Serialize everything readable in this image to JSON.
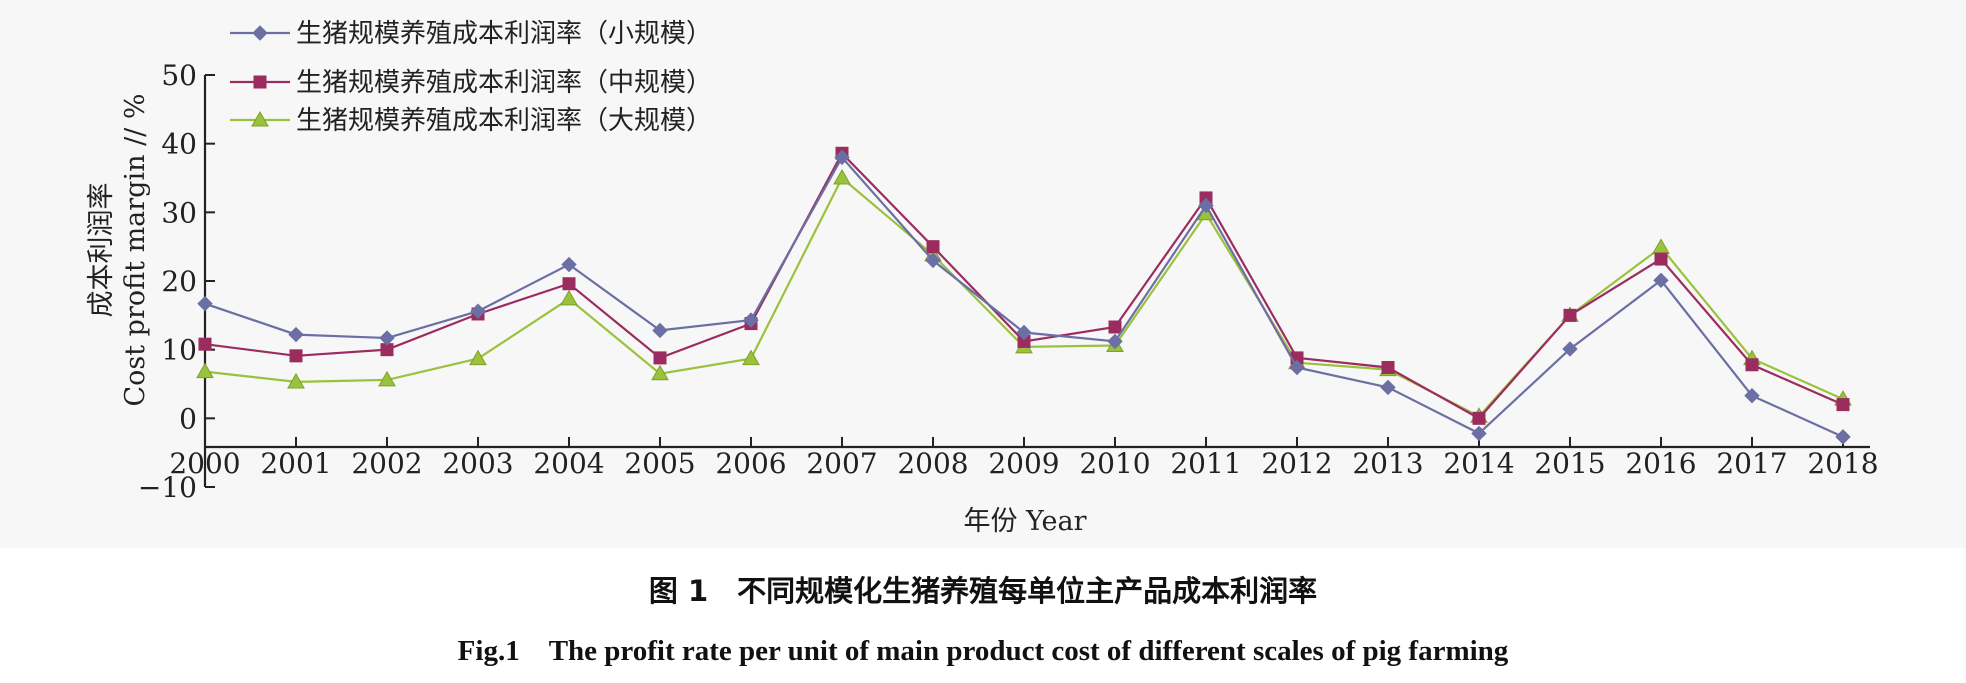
{
  "chart_data": {
    "type": "line",
    "categories": [
      "2000",
      "2001",
      "2002",
      "2003",
      "2004",
      "2005",
      "2006",
      "2007",
      "2008",
      "2009",
      "2010",
      "2011",
      "2012",
      "2013",
      "2014",
      "2015",
      "2016",
      "2017",
      "2018"
    ],
    "series": [
      {
        "name": "生猪规模养殖成本利润率（小规模）",
        "color": "#6b6fa3",
        "marker": "diamond",
        "values": [
          16.7,
          12.2,
          11.7,
          15.6,
          22.4,
          12.8,
          14.3,
          38.0,
          23.0,
          12.5,
          11.2,
          31.0,
          7.4,
          4.5,
          -2.2,
          10.1,
          20.1,
          3.3,
          -2.7
        ]
      },
      {
        "name": "生猪规模养殖成本利润率（中规模）",
        "color": "#9b2c5f",
        "marker": "square",
        "values": [
          10.8,
          9.1,
          10.0,
          15.2,
          19.6,
          8.8,
          13.8,
          38.6,
          25.0,
          11.2,
          13.3,
          32.1,
          8.8,
          7.4,
          0.0,
          15.0,
          23.2,
          7.8,
          2.0
        ]
      },
      {
        "name": "生猪规模养殖成本利润率（大规模）",
        "color": "#9bc23c",
        "marker": "triangle",
        "values": [
          6.8,
          5.3,
          5.6,
          8.7,
          17.4,
          6.5,
          8.7,
          35.0,
          23.8,
          10.4,
          10.6,
          29.8,
          8.1,
          7.1,
          0.3,
          15.0,
          24.9,
          8.7,
          2.8
        ]
      }
    ],
    "xlabel": "年份 Year",
    "ylabel_cn": "成本利润率",
    "ylabel_en": "Cost profit margin // %",
    "ylim": [
      -10,
      50
    ],
    "yticks": [
      "50",
      "40",
      "30",
      "20",
      "10",
      "0",
      "−10"
    ],
    "ytick_values": [
      50,
      40,
      30,
      20,
      10,
      0,
      -10
    ],
    "grid": false,
    "legend_position": "top-left"
  },
  "caption": {
    "cn": "图 1　不同规模化生猪养殖每单位主产品成本利润率",
    "en": "Fig.1　The profit rate per unit of main product cost of different scales of pig farming"
  }
}
